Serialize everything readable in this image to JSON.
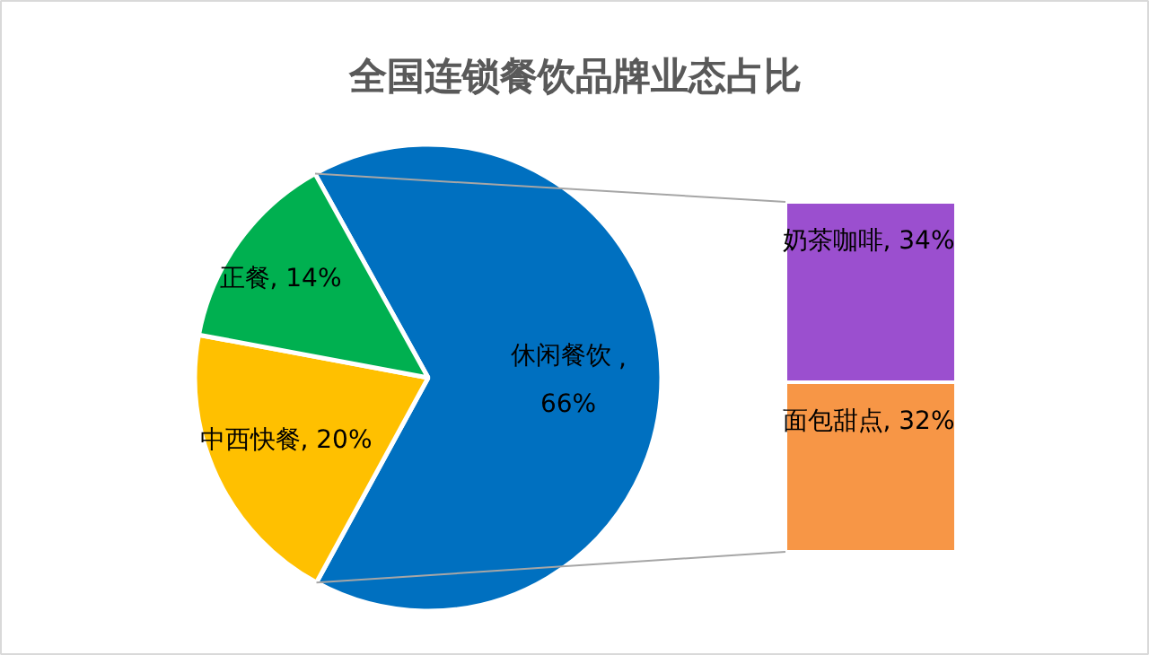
{
  "chart_data": [
    {
      "type": "pie",
      "title": "全国连锁餐饮品牌业态占比",
      "categories": [
        "休闲餐饮",
        "中西快餐",
        "正餐"
      ],
      "values": [
        66,
        20,
        14
      ],
      "colors": [
        "#0070c0",
        "#ffc000",
        "#00b050"
      ],
      "value_labels": [
        ", 66%",
        ", 20%",
        ", 14%"
      ],
      "legend": false
    },
    {
      "type": "bar",
      "stacked": true,
      "categories": [
        null
      ],
      "tick_labels": false,
      "legend": false,
      "series": [
        {
          "name": "面包甜点",
          "color": "#f79646",
          "values": [
            32
          ],
          "value_labels": [
            ", 32%"
          ]
        },
        {
          "name": "奶茶咖啡",
          "color": "#9b4fcf",
          "values": [
            34
          ],
          "value_labels": [
            ", 34%"
          ]
        }
      ]
    }
  ]
}
